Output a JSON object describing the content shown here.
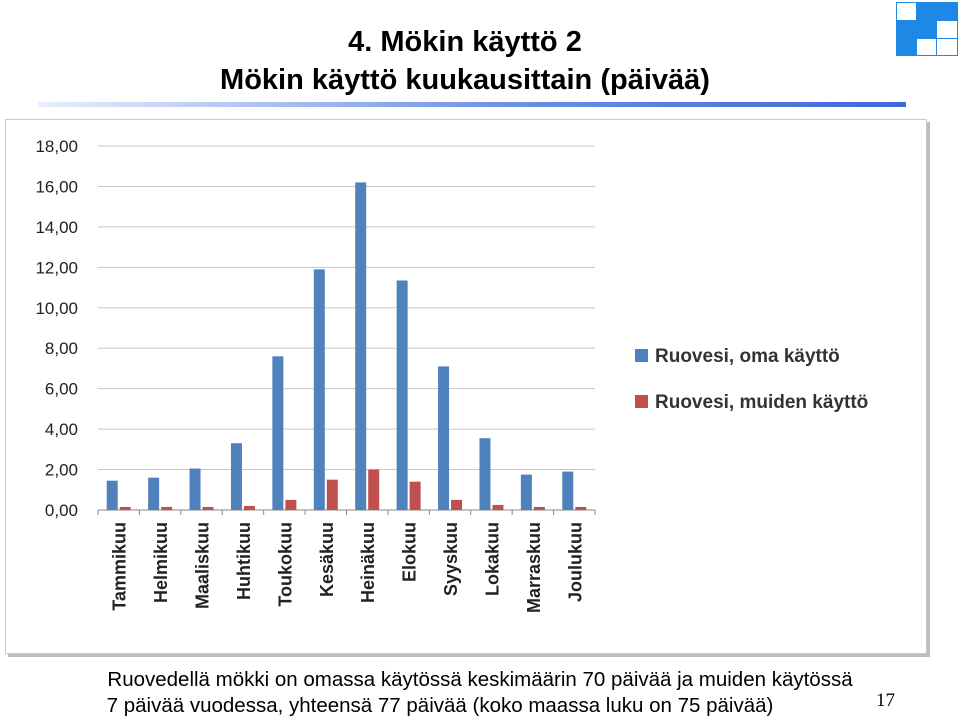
{
  "header": {
    "title_line1": "4. Mökin käyttö 2",
    "title_line2": "Mökin käyttö kuukausittain (päivää)"
  },
  "colors": {
    "series_oma": "#4f81bd",
    "series_muiden": "#c0504d",
    "title_rule": "#3d68d8",
    "logo_blue": "#1e88e5"
  },
  "chart_data": {
    "type": "bar",
    "categories": [
      "Tammikuu",
      "Helmikuu",
      "Maaliskuu",
      "Huhtikuu",
      "Toukokuu",
      "Kesäkuu",
      "Heinäkuu",
      "Elokuu",
      "Syyskuu",
      "Lokakuu",
      "Marraskuu",
      "Joulukuu"
    ],
    "series": [
      {
        "name": "Ruovesi, oma käyttö",
        "values": [
          1.45,
          1.6,
          2.05,
          3.3,
          7.6,
          11.9,
          16.2,
          11.35,
          7.1,
          3.55,
          1.75,
          1.9
        ]
      },
      {
        "name": "Ruovesi, muiden käyttö",
        "values": [
          0.15,
          0.15,
          0.15,
          0.2,
          0.5,
          1.5,
          2.0,
          1.4,
          0.5,
          0.25,
          0.15,
          0.15
        ]
      }
    ],
    "yticks": [
      "0,00",
      "2,00",
      "4,00",
      "6,00",
      "8,00",
      "10,00",
      "12,00",
      "14,00",
      "16,00",
      "18,00"
    ],
    "ylim": [
      0,
      18
    ],
    "grid": true,
    "legend_position": "right"
  },
  "caption": {
    "line1": "Ruovedellä mökki on omassa käytössä keskimäärin 70 päivää ja muiden käytössä",
    "line2": "7 päivää vuodessa, yhteensä 77 päivää (koko maassa luku on 75 päivää)"
  },
  "page_number": "17"
}
